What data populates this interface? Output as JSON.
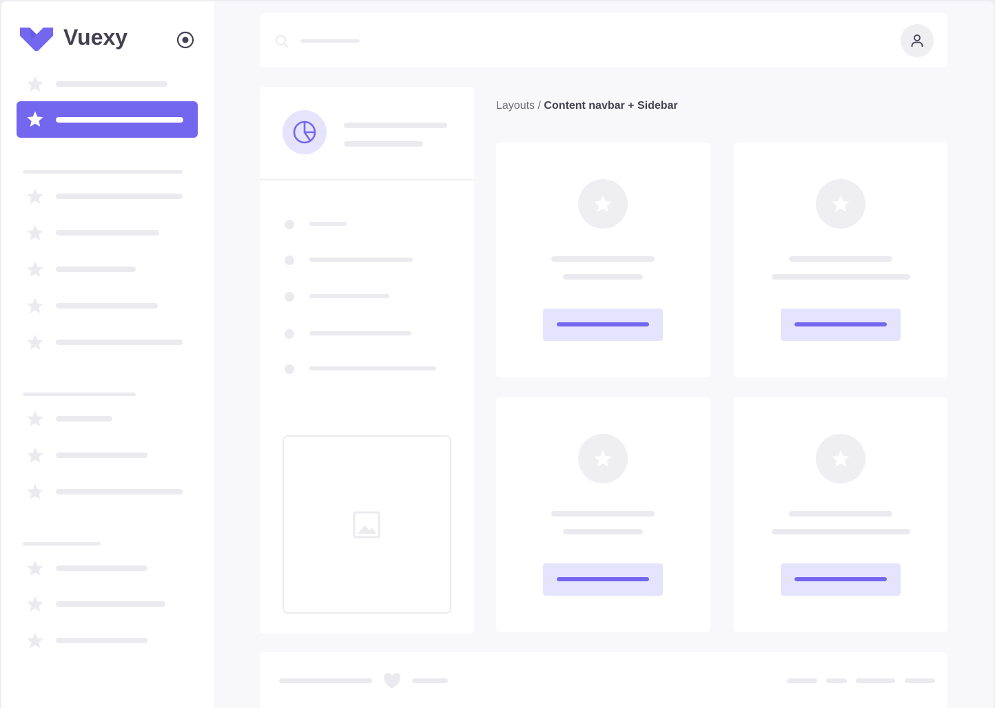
{
  "brand": {
    "name": "Vuexy",
    "color": "#7367f0"
  },
  "colors": {
    "accent": "#7367f0",
    "accent_light": "#e6e4fc",
    "placeholder": "#ebebef",
    "background": "#f8f8fa"
  },
  "breadcrumb": {
    "parent": "Layouts",
    "separator": " / ",
    "current": "Content navbar + Sidebar"
  },
  "icons": {
    "logo": "vuexy-logo",
    "toggle": "radio-circle-icon",
    "nav": "star-icon",
    "search": "search-icon",
    "user": "user-icon",
    "stat": "pie-chart-icon",
    "image": "image-icon",
    "footer": "heart-icon"
  }
}
